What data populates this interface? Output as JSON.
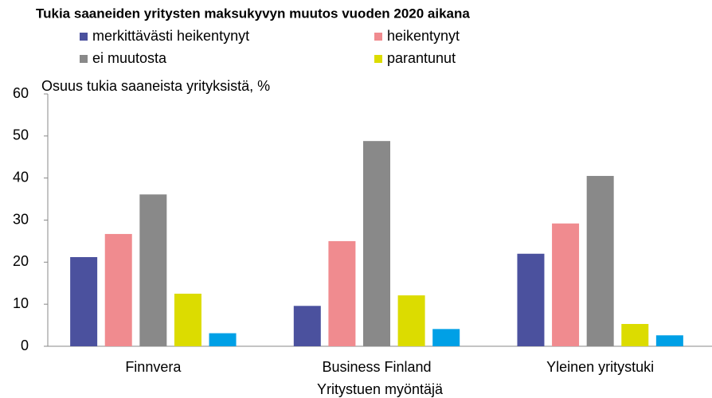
{
  "chart_data": {
    "type": "bar",
    "title": "Tukia saaneiden yritysten maksukyvyn muutos vuoden 2020 aikana",
    "y_label": "Osuus tukia saaneista yrityksistä, %",
    "x_label": "Yritystuen myöntäjä",
    "categories": [
      "Finnvera",
      "Business Finland",
      "Yleinen yritystuki"
    ],
    "series": [
      {
        "name": "merkittävästi heikentynyt",
        "color": "#4b519e",
        "values": [
          21.2,
          9.6,
          22.0
        ]
      },
      {
        "name": "heikentynyt",
        "color": "#f08b8f",
        "values": [
          26.7,
          25.0,
          29.2
        ]
      },
      {
        "name": "ei muutosta",
        "color": "#898989",
        "values": [
          36.1,
          48.8,
          40.5
        ]
      },
      {
        "name": "parantunut",
        "color": "#dcdc00",
        "values": [
          12.5,
          12.1,
          5.3
        ]
      },
      {
        "color": "#00a0e6",
        "values": [
          3.1,
          4.1,
          2.6
        ]
      }
    ],
    "ylim": [
      0,
      60
    ],
    "yticks": [
      0,
      10,
      20,
      30,
      40,
      50,
      60
    ],
    "grid": false
  }
}
